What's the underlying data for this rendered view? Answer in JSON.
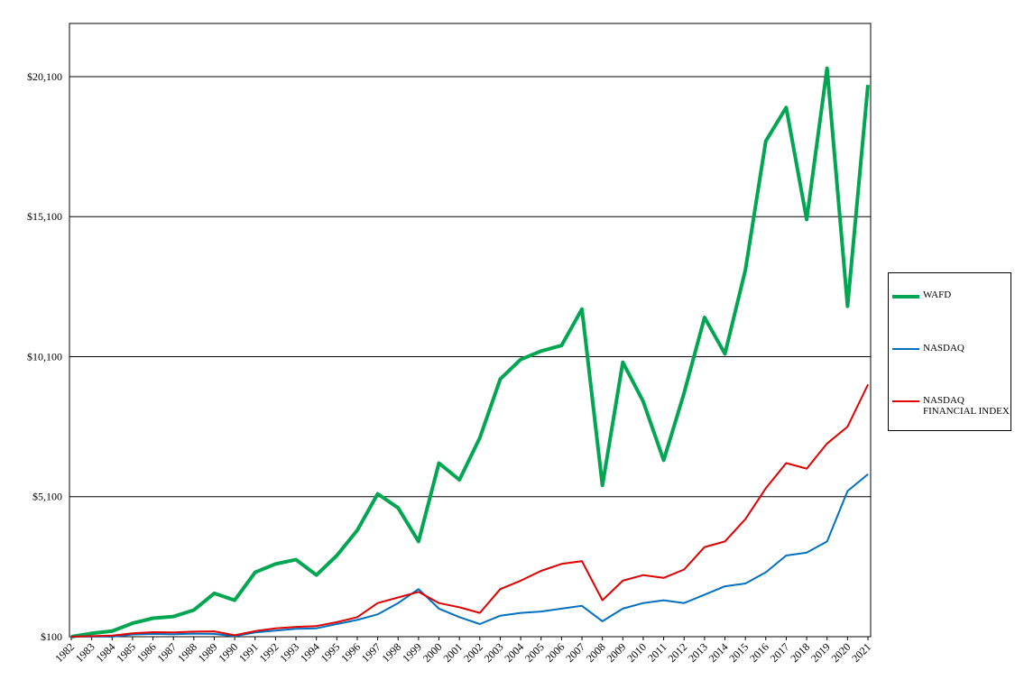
{
  "chart_data": {
    "type": "line",
    "title": "",
    "xlabel": "",
    "ylabel": "",
    "x": [
      "1982",
      "1983",
      "1984",
      "1985",
      "1986",
      "1987",
      "1988",
      "1989",
      "1990",
      "1991",
      "1992",
      "1993",
      "1994",
      "1995",
      "1996",
      "1997",
      "1998",
      "1999",
      "2000",
      "2001",
      "2002",
      "2003",
      "2004",
      "2005",
      "2006",
      "2007",
      "2008",
      "2009",
      "2010",
      "2011",
      "2012",
      "2013",
      "2014",
      "2015",
      "2016",
      "2017",
      "2018",
      "2019",
      "2020",
      "2021"
    ],
    "y_ticks": [
      "$100",
      "$5,100",
      "$10,100",
      "$15,100",
      "$20,100"
    ],
    "y_tick_values": [
      100,
      5100,
      10100,
      15100,
      20100
    ],
    "ylim": [
      100,
      22000
    ],
    "grid": true,
    "legend_position": "right",
    "series": [
      {
        "name": "WAFD",
        "color": "#00a651",
        "values": [
          100,
          220,
          300,
          580,
          760,
          820,
          1050,
          1650,
          1400,
          2400,
          2700,
          2850,
          2300,
          3000,
          3900,
          5200,
          4700,
          3500,
          6300,
          5700,
          7200,
          9300,
          10000,
          10300,
          10500,
          11800,
          5500,
          9900,
          8500,
          6400,
          8800,
          11500,
          10200,
          13200,
          17800,
          19000,
          15000,
          20400,
          11900,
          19800
        ]
      },
      {
        "name": "NASDAQ",
        "color": "#0070c0",
        "values": [
          100,
          110,
          100,
          180,
          200,
          190,
          210,
          200,
          120,
          250,
          320,
          380,
          400,
          550,
          700,
          900,
          1300,
          1800,
          1100,
          800,
          550,
          850,
          950,
          1000,
          1100,
          1200,
          650,
          1100,
          1300,
          1400,
          1300,
          1600,
          1900,
          2000,
          2400,
          3000,
          3100,
          3500,
          5300,
          5900
        ]
      },
      {
        "name": "NASDAQ\nFINANCIAL INDEX",
        "color": "#e00000",
        "values": [
          100,
          120,
          140,
          220,
          260,
          250,
          280,
          290,
          150,
          300,
          400,
          450,
          480,
          620,
          800,
          1300,
          1500,
          1700,
          1300,
          1150,
          950,
          1800,
          2100,
          2450,
          2700,
          2800,
          1400,
          2100,
          2300,
          2200,
          2500,
          3300,
          3500,
          4300,
          5400,
          6300,
          6100,
          7000,
          7600,
          9100
        ]
      }
    ]
  }
}
